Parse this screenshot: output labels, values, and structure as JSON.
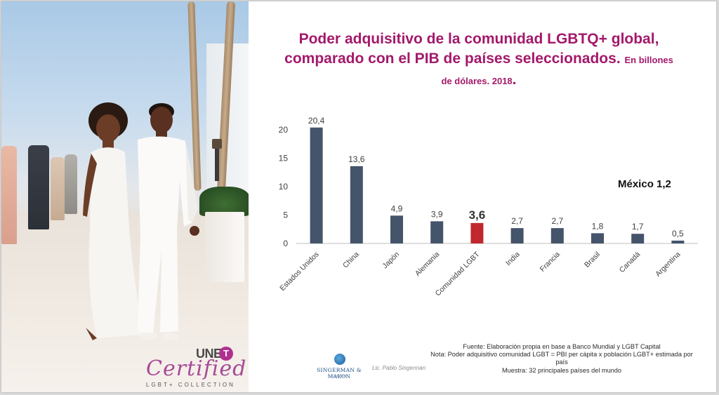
{
  "chart_data": {
    "type": "bar",
    "title": "Poder adquisitivo de la comunidad LGBTQ+ global, comparado con el PIB de países seleccionados.",
    "subtitle": "En billones de dólares. 2018",
    "categories": [
      "Estados Unidos",
      "China",
      "Japón",
      "Alemania",
      "Comunidad LGBT",
      "India",
      "Francia",
      "Brasil",
      "Canadá",
      "Argentina"
    ],
    "values": [
      20.4,
      13.6,
      4.9,
      3.9,
      3.6,
      2.7,
      2.7,
      1.8,
      1.7,
      0.5
    ],
    "value_labels": [
      "20,4",
      "13,6",
      "4,9",
      "3,9",
      "3,6",
      "2,7",
      "2,7",
      "1,8",
      "1,7",
      "0,5"
    ],
    "yticks": [
      "0",
      "5",
      "10",
      "15",
      "20"
    ],
    "ylim": [
      0,
      22
    ],
    "highlight_category": "Comunidad LGBT",
    "bar_color": "#44546a",
    "highlight_color": "#c0282d",
    "grid": false,
    "legend": "none",
    "annotation": "México 1,2"
  },
  "title_color": "#a3196b",
  "footer": {
    "logo_name": "SINGERMAN & MAKON",
    "logo_tagline": "consultora",
    "signature": "Lic. Pablo Singerman",
    "source": "Fuente: Elaboración propia en base a Banco Mundial y LGBT Capital",
    "note": "Nota: Poder adquisitivo comunidad LGBT = PBI per cápita x población LGBT+ estimada por país",
    "sample": "Muestra: 32 principales países del mundo"
  },
  "photo": {
    "logo_une": "UNE",
    "logo_badge": "T",
    "logo_certified": "Certified",
    "logo_collection": "LGBT+ COLLECTION"
  }
}
